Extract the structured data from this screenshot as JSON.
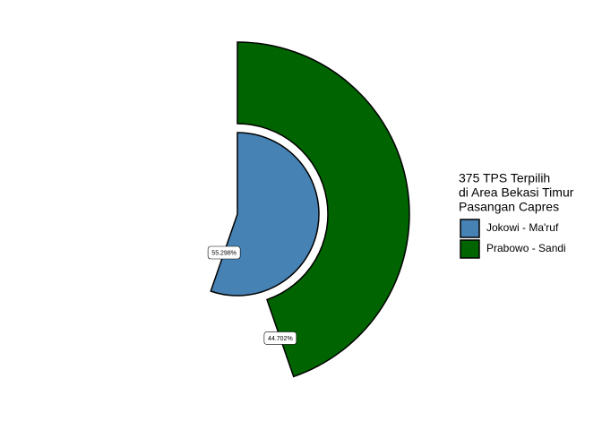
{
  "chart_data": {
    "type": "polar-bar",
    "legend_title": [
      "375 TPS Terpilih",
      "di Area Bekasi Timur",
      "Pasangan Capres"
    ],
    "legend_position": "right",
    "series": [
      {
        "name": "Jokowi - Ma'ruf",
        "color": "#4682b4",
        "values": [
          55.298
        ],
        "value_labels": [
          "55.298%"
        ]
      },
      {
        "name": "Prabowo - Sandi",
        "color": "#006400",
        "values": [
          44.702
        ],
        "value_labels": [
          "44.702%"
        ]
      }
    ]
  }
}
